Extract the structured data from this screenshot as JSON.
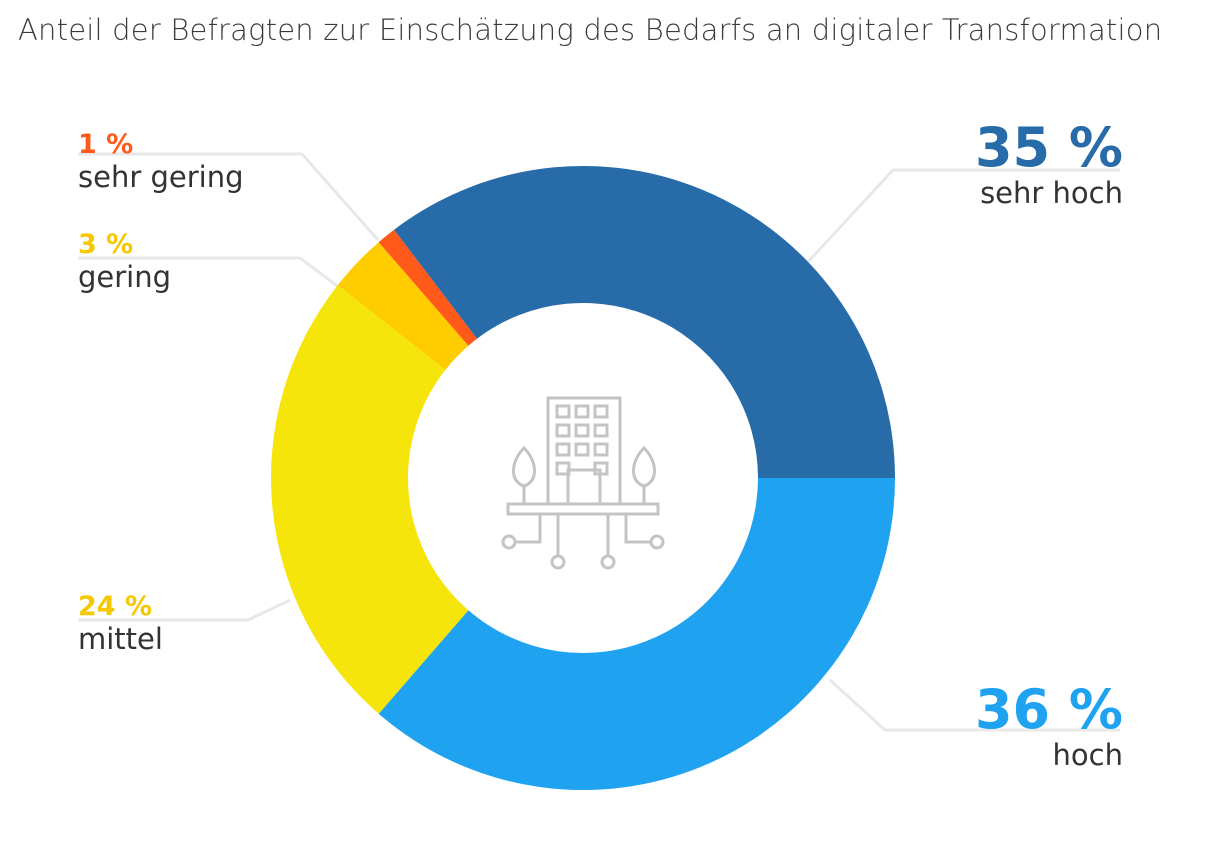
{
  "chart_data": {
    "type": "pie",
    "donut": true,
    "title": "Anteil der Befragten zur Einschätzung des Bedarfs an digitaler Transformation",
    "unit": "%",
    "slices": [
      {
        "label": "hoch",
        "value": 36,
        "display": "36 %",
        "color": "#1FA3F0",
        "label_color": "#1FA3F0"
      },
      {
        "label": "mittel",
        "value": 24,
        "display": "24 %",
        "color": "#F5E50A",
        "label_color": "#F5C800"
      },
      {
        "label": "gering",
        "value": 3,
        "display": "3 %",
        "color": "#FFCC00",
        "label_color": "#F5C800"
      },
      {
        "label": "sehr gering",
        "value": 1,
        "display": "1 %",
        "color": "#FF5A1A",
        "label_color": "#FF5A1A"
      },
      {
        "label": "sehr hoch",
        "value": 35,
        "display": "35 %",
        "color": "#276BA8",
        "label_color": "#276BA8"
      }
    ],
    "center_icon": "building-network-icon",
    "legend": "none"
  }
}
